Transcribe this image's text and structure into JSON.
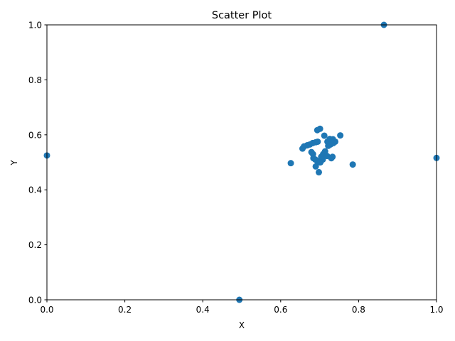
{
  "chart_data": {
    "type": "scatter",
    "title": "Scatter Plot",
    "xlabel": "X",
    "ylabel": "Y",
    "xlim": [
      0,
      1
    ],
    "ylim": [
      0,
      1
    ],
    "xticks": [
      "0.0",
      "0.2",
      "0.4",
      "0.6",
      "0.8",
      "1.0"
    ],
    "yticks": [
      "0.0",
      "0.2",
      "0.4",
      "0.6",
      "0.8",
      "1.0"
    ],
    "grid": false,
    "series": [
      {
        "color": "#1f77b4",
        "points": [
          [
            0.0,
            0.525
          ],
          [
            0.494,
            0.0
          ],
          [
            0.865,
            1.0
          ],
          [
            1.0,
            0.516
          ],
          [
            0.626,
            0.497
          ],
          [
            0.785,
            0.492
          ],
          [
            0.753,
            0.598
          ],
          [
            0.712,
            0.597
          ],
          [
            0.694,
            0.617
          ],
          [
            0.701,
            0.622
          ],
          [
            0.698,
            0.464
          ],
          [
            0.69,
            0.485
          ],
          [
            0.656,
            0.55
          ],
          [
            0.66,
            0.558
          ],
          [
            0.668,
            0.562
          ],
          [
            0.675,
            0.565
          ],
          [
            0.682,
            0.57
          ],
          [
            0.69,
            0.573
          ],
          [
            0.695,
            0.575
          ],
          [
            0.679,
            0.537
          ],
          [
            0.683,
            0.53
          ],
          [
            0.684,
            0.515
          ],
          [
            0.689,
            0.51
          ],
          [
            0.694,
            0.505
          ],
          [
            0.7,
            0.5
          ],
          [
            0.704,
            0.52
          ],
          [
            0.709,
            0.53
          ],
          [
            0.714,
            0.54
          ],
          [
            0.719,
            0.523
          ],
          [
            0.722,
            0.56
          ],
          [
            0.72,
            0.575
          ],
          [
            0.726,
            0.585
          ],
          [
            0.734,
            0.584
          ],
          [
            0.74,
            0.575
          ],
          [
            0.728,
            0.565
          ],
          [
            0.735,
            0.57
          ],
          [
            0.73,
            0.515
          ],
          [
            0.733,
            0.52
          ],
          [
            0.708,
            0.51
          ],
          [
            0.702,
            0.5
          ]
        ]
      }
    ]
  }
}
